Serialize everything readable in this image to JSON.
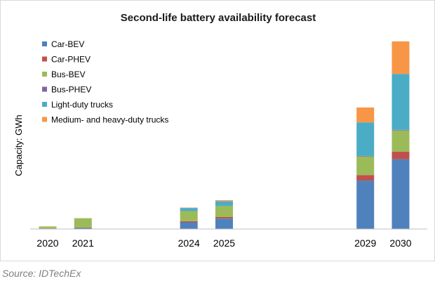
{
  "chart_data": {
    "type": "bar",
    "stacked": true,
    "title": "Second-life battery availability forecast",
    "xlabel": "",
    "ylabel": "Capacity: GWh",
    "y_ticks_shown": false,
    "grid": false,
    "legend_position": "top-left",
    "categories": [
      "2020",
      "2021",
      "2024",
      "2025",
      "2029",
      "2030"
    ],
    "x_positions": [
      2020,
      2021,
      2024,
      2025,
      2029,
      2030
    ],
    "ylim": [
      0,
      100
    ],
    "series": [
      {
        "name": "Car-BEV",
        "color": "#4F81BD",
        "values": [
          0.3,
          0.6,
          3.6,
          5.6,
          26,
          37.5
        ]
      },
      {
        "name": "Car-PHEV",
        "color": "#C0504D",
        "values": [
          0.1,
          0.2,
          0.6,
          0.8,
          3.0,
          4.0
        ]
      },
      {
        "name": "Bus-BEV",
        "color": "#9BBB59",
        "values": [
          1.0,
          5.0,
          5.5,
          6.0,
          10.0,
          11.5
        ]
      },
      {
        "name": "Bus-PHEV",
        "color": "#8064A2",
        "values": [
          0.0,
          0.0,
          0.1,
          0.1,
          0.3,
          0.3
        ]
      },
      {
        "name": "Light-duty trucks",
        "color": "#4BACC6",
        "values": [
          0.0,
          0.0,
          1.5,
          2.5,
          18.0,
          30.0
        ]
      },
      {
        "name": "Medium- and heavy-duty trucks",
        "color": "#F79646",
        "values": [
          0.0,
          0.0,
          0.2,
          0.5,
          8.0,
          17.5
        ]
      }
    ]
  },
  "source": "Source: IDTechEx"
}
